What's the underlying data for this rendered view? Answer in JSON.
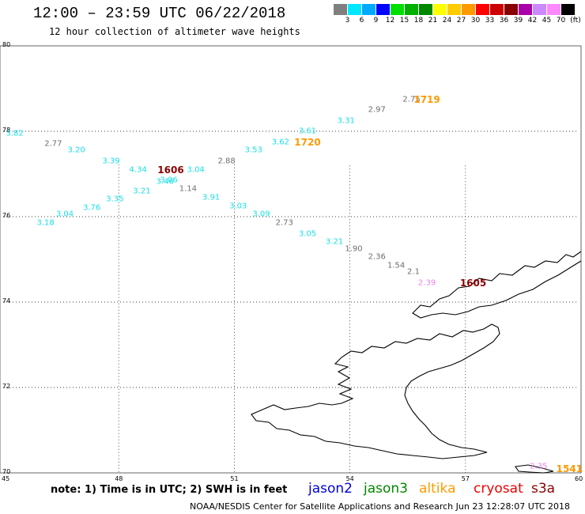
{
  "header": {
    "title": "12:00 – 23:59 UTC 06/22/2018",
    "subtitle": "12 hour collection of altimeter wave heights"
  },
  "legend": {
    "unit": "(ft)",
    "colors": [
      "#7f7f7f",
      "#00e8ff",
      "#00aaff",
      "#0000ff",
      "#00e000",
      "#00b000",
      "#008800",
      "#ffff00",
      "#ffcc00",
      "#ff9900",
      "#ff0000",
      "#cc0000",
      "#880000",
      "#aa00aa",
      "#cc88ff",
      "#ff88ff",
      "#000000"
    ],
    "labels": [
      "3",
      "6",
      "9",
      "12",
      "15",
      "18",
      "21",
      "24",
      "27",
      "30",
      "33",
      "36",
      "39",
      "42",
      "45",
      "70"
    ]
  },
  "map": {
    "lat_labels": [
      "80",
      "78",
      "76",
      "74",
      "72",
      "70"
    ],
    "lon_labels": [
      "45",
      "48",
      "51",
      "54",
      "57",
      "60"
    ],
    "grid_lat_values": [
      78,
      76,
      74,
      72
    ],
    "grid_lon_values": [
      48,
      51,
      54,
      57
    ]
  },
  "observations": [
    {
      "lon": 45.3,
      "lat": 77.95,
      "text": "3.82",
      "color": "#19e0e8"
    },
    {
      "lon": 46.3,
      "lat": 77.7,
      "text": "2.77",
      "color": "#6e6e6e"
    },
    {
      "lon": 46.9,
      "lat": 77.55,
      "text": "3.20",
      "color": "#19e0e8"
    },
    {
      "lon": 47.8,
      "lat": 77.3,
      "text": "3.39",
      "color": "#19e0e8"
    },
    {
      "lon": 48.5,
      "lat": 77.1,
      "text": "4.34",
      "color": "#19e0e8"
    },
    {
      "lon": 49.3,
      "lat": 76.85,
      "text": "3.06",
      "color": "#19e0e8"
    },
    {
      "lon": 49.2,
      "lat": 76.82,
      "text": "3.46",
      "color": "#19e0e8"
    },
    {
      "lon": 50.0,
      "lat": 77.1,
      "text": "3.04",
      "color": "#19e0e8"
    },
    {
      "lon": 48.6,
      "lat": 76.6,
      "text": "3.21",
      "color": "#19e0e8"
    },
    {
      "lon": 49.8,
      "lat": 76.65,
      "text": "1.14",
      "color": "#6e6e6e"
    },
    {
      "lon": 47.9,
      "lat": 76.4,
      "text": "3.35",
      "color": "#19e0e8"
    },
    {
      "lon": 47.3,
      "lat": 76.2,
      "text": "3.76",
      "color": "#19e0e8"
    },
    {
      "lon": 46.6,
      "lat": 76.05,
      "text": "3.04",
      "color": "#19e0e8"
    },
    {
      "lon": 46.1,
      "lat": 75.85,
      "text": "3.18",
      "color": "#19e0e8"
    },
    {
      "lon": 50.8,
      "lat": 77.3,
      "text": "2.88",
      "color": "#6e6e6e"
    },
    {
      "lon": 50.4,
      "lat": 76.45,
      "text": "3.91",
      "color": "#19e0e8"
    },
    {
      "lon": 51.1,
      "lat": 76.25,
      "text": "3.03",
      "color": "#19e0e8"
    },
    {
      "lon": 51.7,
      "lat": 76.05,
      "text": "3.09",
      "color": "#19e0e8"
    },
    {
      "lon": 52.3,
      "lat": 75.85,
      "text": "2.73",
      "color": "#6e6e6e"
    },
    {
      "lon": 52.9,
      "lat": 75.6,
      "text": "3.05",
      "color": "#19e0e8"
    },
    {
      "lon": 53.6,
      "lat": 75.4,
      "text": "3.21",
      "color": "#19e0e8"
    },
    {
      "lon": 54.1,
      "lat": 75.25,
      "text": "1.90",
      "color": "#6e6e6e"
    },
    {
      "lon": 54.7,
      "lat": 75.05,
      "text": "2.36",
      "color": "#6e6e6e"
    },
    {
      "lon": 55.2,
      "lat": 74.85,
      "text": "1.54",
      "color": "#6e6e6e"
    },
    {
      "lon": 55.65,
      "lat": 74.7,
      "text": "2.1",
      "color": "#6e6e6e"
    },
    {
      "lon": 56.0,
      "lat": 74.45,
      "text": "2.39",
      "color": "#ee82ee"
    },
    {
      "lon": 51.5,
      "lat": 77.55,
      "text": "3.53",
      "color": "#19e0e8"
    },
    {
      "lon": 52.2,
      "lat": 77.75,
      "text": "3.62",
      "color": "#19e0e8"
    },
    {
      "lon": 52.9,
      "lat": 78.0,
      "text": "3.61",
      "color": "#19e0e8"
    },
    {
      "lon": 53.9,
      "lat": 78.25,
      "text": "3.31",
      "color": "#19e0e8"
    },
    {
      "lon": 54.7,
      "lat": 78.5,
      "text": "2.97",
      "color": "#6e6e6e"
    },
    {
      "lon": 55.6,
      "lat": 78.75,
      "text": "2.75",
      "color": "#6e6e6e"
    },
    {
      "lon": 58.9,
      "lat": 70.15,
      "text": "2.35",
      "color": "#ee82ee"
    }
  ],
  "track_labels": [
    {
      "lon": 49.35,
      "lat": 77.1,
      "text": "1606",
      "color": "#8b0000"
    },
    {
      "lon": 52.9,
      "lat": 77.75,
      "text": "1720",
      "color": "#ff9900"
    },
    {
      "lon": 56.0,
      "lat": 78.75,
      "text": "1719",
      "color": "#ff9900"
    },
    {
      "lon": 57.2,
      "lat": 74.45,
      "text": "1605",
      "color": "#8b0000"
    },
    {
      "lon": 59.7,
      "lat": 70.1,
      "text": "1541",
      "color": "#ff9900"
    }
  ],
  "note": "note:  1) Time is in UTC;  2) SWH is in feet",
  "satellites": [
    {
      "name": "jason2",
      "color": "#0000dd"
    },
    {
      "name": "jason3",
      "color": "#008800"
    },
    {
      "name": "altika",
      "color": "#ff9900"
    },
    {
      "name": "cryosat",
      "color": "#ee0000"
    },
    {
      "name": "s3a",
      "color": "#8b0000"
    }
  ],
  "footer": "NOAA/NESDIS Center for Satellite Applications and Research   Jun 23 12:28:07 UTC 2018"
}
